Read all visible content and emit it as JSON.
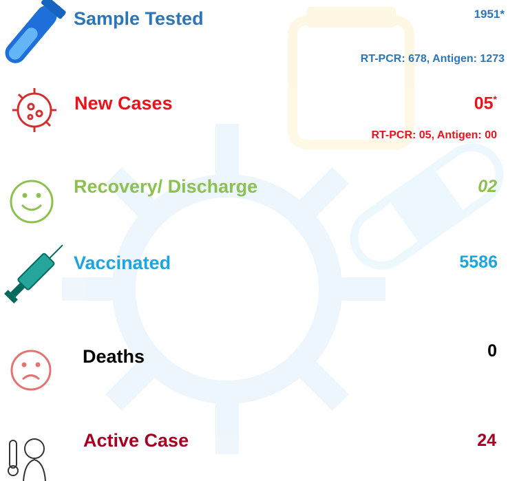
{
  "rows": [
    {
      "label": "Sample Tested",
      "value": "1951*",
      "detail": "RT-PCR: 678, Antigen: 1273"
    },
    {
      "label": "New Cases",
      "value": "05",
      "mark": "*",
      "detail": "RT-PCR: 05, Antigen: 00"
    },
    {
      "label": "Recovery/ Discharge",
      "value": "02"
    },
    {
      "label": "Vaccinated",
      "value": "5586"
    },
    {
      "label": "Deaths",
      "value": "0"
    },
    {
      "label": "Active Case",
      "value": "24"
    }
  ]
}
